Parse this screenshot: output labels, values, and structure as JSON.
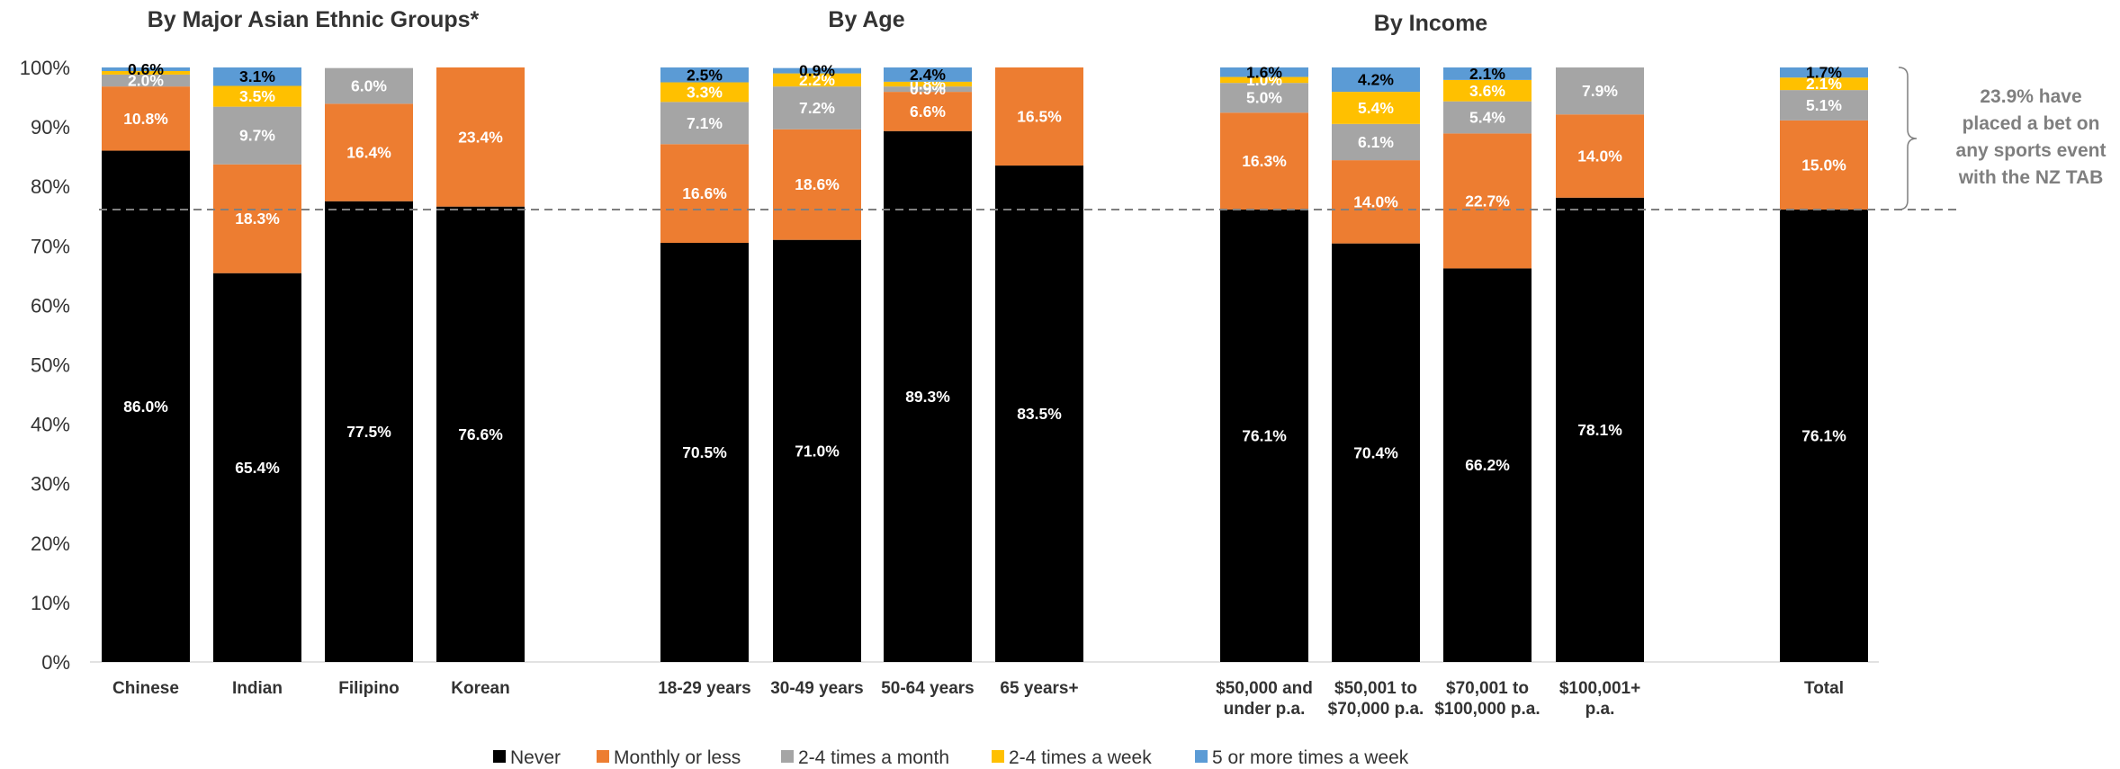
{
  "chart_data": {
    "type": "bar",
    "stacked": true,
    "percent_stacked": true,
    "group_titles": [
      "By Major Asian Ethnic Groups*",
      "By Age",
      "By Income"
    ],
    "categories": [
      [
        "Chinese"
      ],
      [
        "Indian"
      ],
      [
        "Filipino"
      ],
      [
        "Korean"
      ],
      [
        "18-29 years"
      ],
      [
        "30-49 years"
      ],
      [
        "50-64 years"
      ],
      [
        "65 years+"
      ],
      [
        "$50,000 and",
        "under p.a."
      ],
      [
        "$50,001 to",
        "$70,000 p.a."
      ],
      [
        "$70,001 to",
        "$100,000 p.a."
      ],
      [
        "$100,001+",
        "p.a."
      ],
      [
        "Total"
      ]
    ],
    "ytick_labels": [
      "0%",
      "10%",
      "20%",
      "30%",
      "40%",
      "50%",
      "60%",
      "70%",
      "80%",
      "90%",
      "100%"
    ],
    "ylim": [
      0,
      100
    ],
    "legend_position": "bottom",
    "series": [
      {
        "name": "Never",
        "color": "#000000",
        "label_color": "#ffffff",
        "values": [
          86.0,
          65.4,
          77.5,
          76.6,
          70.5,
          71.0,
          89.3,
          83.5,
          76.1,
          70.4,
          66.2,
          78.1,
          76.1
        ],
        "labels": [
          "86.0%",
          "65.4%",
          "77.5%",
          "76.6%",
          "70.5%",
          "71.0%",
          "89.3%",
          "83.5%",
          "76.1%",
          "70.4%",
          "66.2%",
          "78.1%",
          "76.1%"
        ]
      },
      {
        "name": "Monthly or less",
        "color": "#ed7d31",
        "label_color": "#ffffff",
        "values": [
          10.8,
          18.3,
          16.4,
          23.4,
          16.6,
          18.6,
          6.6,
          16.5,
          16.3,
          14.0,
          22.7,
          14.0,
          15.0
        ],
        "labels": [
          "10.8%",
          "18.3%",
          "16.4%",
          "23.4%",
          "16.6%",
          "18.6%",
          "6.6%",
          "16.5%",
          "16.3%",
          "14.0%",
          "22.7%",
          "14.0%",
          "15.0%"
        ]
      },
      {
        "name": "2-4 times a month",
        "color": "#a5a5a5",
        "label_color": "#ffffff",
        "values": [
          2.0,
          9.7,
          6.0,
          0,
          7.1,
          7.2,
          0.9,
          0,
          5.0,
          6.1,
          5.4,
          7.9,
          5.1
        ],
        "labels": [
          "2.0%",
          "9.7%",
          "6.0%",
          "",
          "7.1%",
          "7.2%",
          "0.9%",
          "",
          "5.0%",
          "6.1%",
          "5.4%",
          "7.9%",
          "5.1%"
        ]
      },
      {
        "name": "2-4 times a week",
        "color": "#ffc000",
        "label_color": "#ffffff",
        "values": [
          0.6,
          3.5,
          0,
          0,
          3.3,
          2.2,
          0.8,
          0,
          1.0,
          5.4,
          3.6,
          0,
          2.1
        ],
        "labels": [
          "",
          "3.5%",
          "",
          "",
          "3.3%",
          "2.2%",
          "0.8%",
          "",
          "1.0%",
          "5.4%",
          "3.6%",
          "",
          "2.1%"
        ]
      },
      {
        "name": "5 or more times a week",
        "color": "#5b9bd5",
        "label_color": "#000000",
        "values": [
          0.6,
          3.1,
          0,
          0,
          2.5,
          0.9,
          2.4,
          0,
          1.6,
          4.2,
          2.1,
          0,
          1.7
        ],
        "labels": [
          "0.6%",
          "3.1%",
          "",
          "",
          "2.5%",
          "0.9%",
          "2.4%",
          "",
          "1.6%",
          "4.2%",
          "2.1%",
          "",
          "1.7%"
        ]
      }
    ],
    "reference_line": {
      "value": 76.1,
      "style": "dashed"
    },
    "annotation": [
      "23.9% have",
      "placed a bet on",
      "any sports event",
      "with the NZ TAB"
    ]
  }
}
